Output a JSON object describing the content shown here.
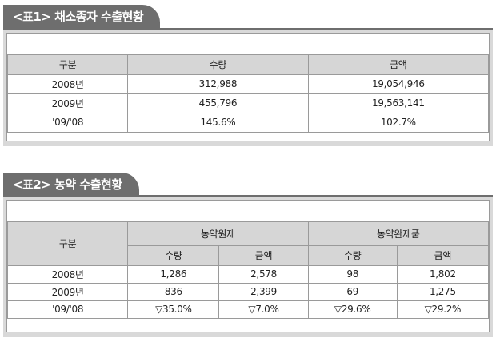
{
  "table1": {
    "title": "<표1> 채소종자 수출현황",
    "headers": [
      "구분",
      "수량",
      "금액"
    ],
    "rows": [
      [
        "2008년",
        "312,988",
        "19,054,946"
      ],
      [
        "2009년",
        "455,796",
        "19,563,141"
      ],
      [
        "'09/'08",
        "145.6%",
        "102.7%"
      ]
    ]
  },
  "table2": {
    "title": "<표2> 농약 수출현황",
    "header_group": [
      "구분",
      "농약원제",
      "농약완제품"
    ],
    "sub_headers": [
      "수량",
      "금액",
      "수량",
      "금액"
    ],
    "rows": [
      [
        "2008년",
        "1,286",
        "2,578",
        "98",
        "1,802"
      ],
      [
        "2009년",
        "836",
        "2,399",
        "69",
        "1,275"
      ],
      [
        "'09/'08",
        "▽35.0%",
        "▽7.0%",
        "▽29.6%",
        "▽29.2%"
      ]
    ]
  }
}
